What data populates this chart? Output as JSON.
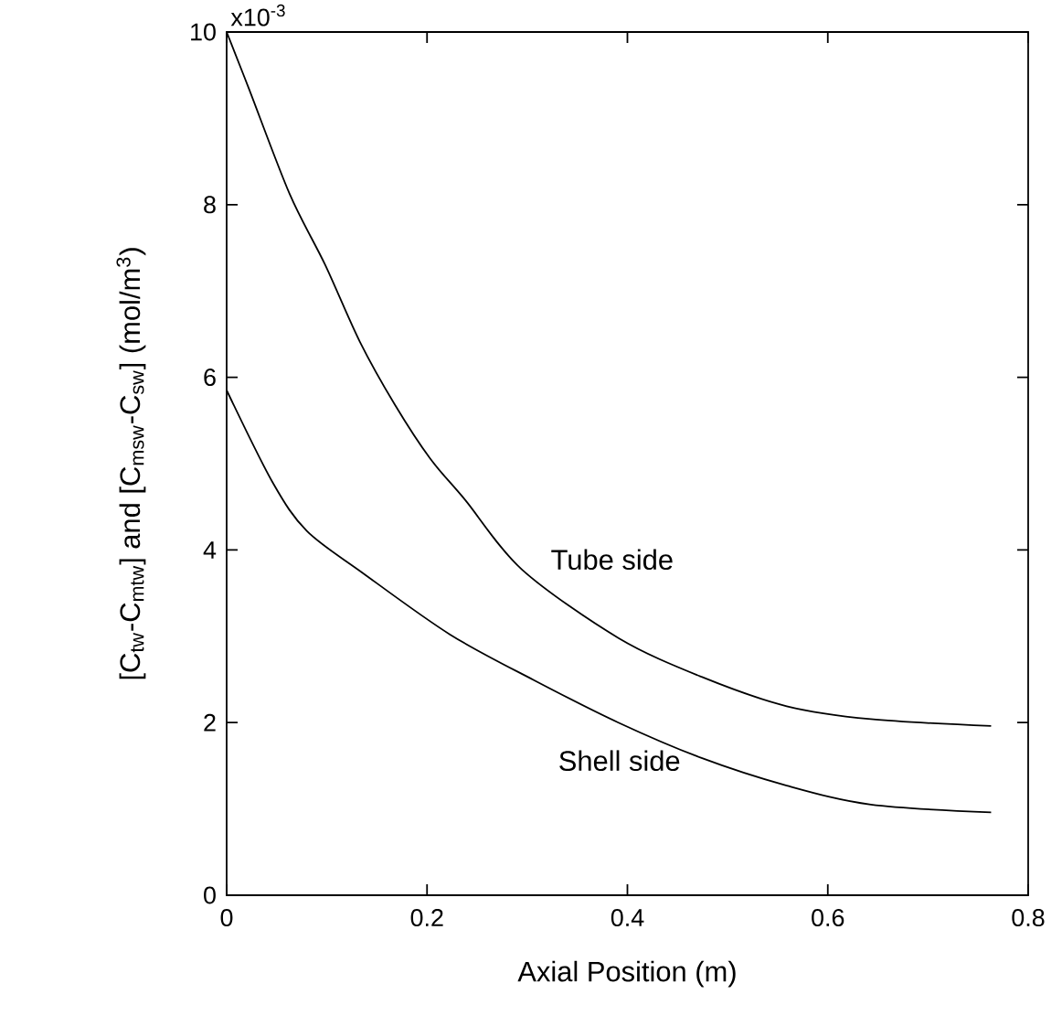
{
  "chart_data": {
    "type": "line",
    "xlabel": "Axial Position (m)",
    "ylabel": "[C$_{tw}$-C$_{mtw}$] and [C$_{msw}$-C$_{sw}$] (mol/m$^{3}$)",
    "xlim": [
      0,
      0.8
    ],
    "ylim": [
      0,
      10
    ],
    "xticks": [
      0,
      0.2,
      0.4,
      0.6,
      0.8
    ],
    "yticks": [
      0,
      2,
      4,
      6,
      8,
      10
    ],
    "series": [
      {
        "color": "#000000",
        "x": [
          0,
          0.022,
          0.063,
          0.098,
          0.133,
          0.168,
          0.203,
          0.238,
          0.295,
          0.391,
          0.474,
          0.559,
          0.643,
          0.763
        ],
        "values": [
          10,
          9.35,
          8.12,
          7.31,
          6.41,
          5.68,
          5.06,
          4.58,
          3.77,
          2.98,
          2.53,
          2.19,
          2.04,
          1.96
        ]
      },
      {
        "color": "#000000",
        "x": [
          0,
          0.046,
          0.08,
          0.135,
          0.223,
          0.307,
          0.391,
          0.474,
          0.559,
          0.643,
          0.763
        ],
        "values": [
          5.85,
          4.78,
          4.22,
          3.74,
          3.02,
          2.49,
          2.0,
          1.59,
          1.27,
          1.05,
          0.96
        ]
      }
    ],
    "annotations": [
      "Tube side",
      "Shell side",
      "x10$^{-3}$"
    ]
  }
}
